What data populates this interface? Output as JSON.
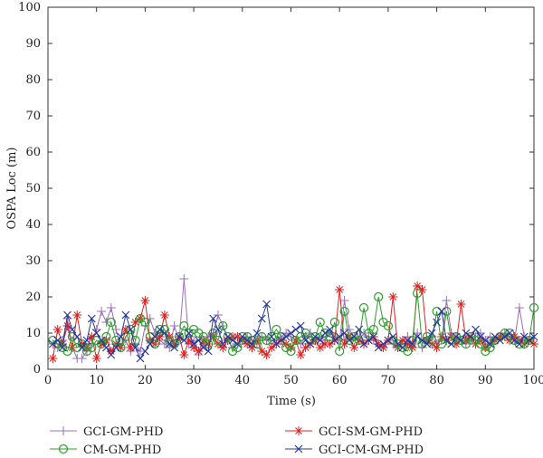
{
  "chart_data": {
    "type": "line",
    "title": "",
    "xlabel": "Time (s)",
    "ylabel": "OSPA Loc (m)",
    "xlim": [
      0,
      100
    ],
    "ylim": [
      0,
      100
    ],
    "xticks": [
      "0",
      "10",
      "20",
      "30",
      "40",
      "50",
      "60",
      "70",
      "80",
      "90",
      "100"
    ],
    "yticks": [
      "0",
      "10",
      "20",
      "30",
      "40",
      "50",
      "60",
      "70",
      "80",
      "90",
      "100"
    ],
    "grid": false,
    "legend_position": "bottom",
    "series": [
      {
        "name": "GCI-GM-PHD",
        "color": "#9b6fc0",
        "marker": "plus",
        "values": [
          7,
          6,
          8,
          14,
          6,
          3,
          3,
          5,
          7,
          11,
          16,
          13,
          17,
          11,
          6,
          8,
          5,
          7,
          5,
          12,
          14,
          10,
          8,
          7,
          6,
          12,
          8,
          25,
          7,
          8,
          4,
          7,
          9,
          10,
          15,
          12,
          8,
          6,
          7,
          8,
          9,
          8,
          7,
          9,
          8,
          7,
          8,
          9,
          10,
          9,
          8,
          7,
          9,
          10,
          8,
          9,
          8,
          10,
          9,
          8,
          19,
          11,
          9,
          8,
          10,
          9,
          8,
          7,
          6,
          8,
          7,
          6,
          8,
          9,
          7,
          10,
          6,
          8,
          9,
          7,
          8,
          19,
          10,
          9,
          8,
          7,
          8,
          9,
          10,
          8,
          9,
          8,
          9,
          10,
          9,
          8,
          17,
          9,
          8,
          7
        ]
      },
      {
        "name": "GCI-SM-GM-PHD",
        "color": "#e02020",
        "marker": "asterisk",
        "values": [
          3,
          11,
          7,
          12,
          6,
          15,
          7,
          6,
          9,
          3,
          7,
          8,
          5,
          7,
          6,
          11,
          6,
          13,
          14,
          19,
          8,
          7,
          9,
          15,
          9,
          7,
          9,
          4,
          8,
          6,
          5,
          8,
          7,
          9,
          7,
          6,
          8,
          9,
          9,
          8,
          7,
          6,
          8,
          5,
          4,
          6,
          7,
          8,
          7,
          6,
          8,
          4,
          6,
          7,
          8,
          6,
          7,
          7,
          8,
          22,
          7,
          9,
          6,
          8,
          7,
          8,
          9,
          7,
          6,
          8,
          20,
          6,
          8,
          7,
          6,
          23,
          22,
          8,
          7,
          6,
          9,
          8,
          9,
          7,
          18,
          8,
          9,
          7,
          8,
          6,
          7,
          8,
          9,
          9,
          8,
          9,
          8,
          7,
          8,
          7
        ]
      },
      {
        "name": "CM-GM-PHD",
        "color": "#2ea02e",
        "marker": "circle",
        "values": [
          8,
          7,
          6,
          5,
          9,
          6,
          7,
          5,
          6,
          8,
          7,
          9,
          13,
          8,
          6,
          9,
          11,
          8,
          14,
          13,
          9,
          7,
          11,
          11,
          8,
          7,
          9,
          12,
          10,
          11,
          10,
          9,
          7,
          10,
          8,
          12,
          9,
          5,
          6,
          9,
          9,
          8,
          7,
          9,
          8,
          9,
          11,
          9,
          6,
          5,
          8,
          9,
          10,
          8,
          9,
          13,
          10,
          9,
          13,
          5,
          16,
          8,
          9,
          8,
          17,
          10,
          11,
          20,
          13,
          12,
          8,
          7,
          6,
          5,
          8,
          21,
          7,
          9,
          8,
          16,
          7,
          16,
          8,
          9,
          8,
          7,
          9,
          8,
          7,
          5,
          6,
          8,
          9,
          10,
          10,
          8,
          7,
          7,
          8,
          17
        ]
      },
      {
        "name": "GCI-CM-GM-PHD",
        "color": "#2a3a9a",
        "marker": "x",
        "values": [
          7,
          8,
          6,
          15,
          11,
          9,
          6,
          8,
          14,
          10,
          8,
          6,
          4,
          6,
          9,
          15,
          11,
          6,
          3,
          5,
          7,
          9,
          11,
          10,
          7,
          6,
          9,
          8,
          10,
          7,
          8,
          6,
          5,
          14,
          11,
          7,
          9,
          8,
          7,
          9,
          8,
          7,
          10,
          14,
          18,
          9,
          7,
          8,
          9,
          10,
          11,
          12,
          8,
          7,
          9,
          8,
          10,
          11,
          8,
          9,
          10,
          8,
          9,
          11,
          7,
          8,
          9,
          6,
          7,
          8,
          9,
          7,
          6,
          8,
          7,
          9,
          8,
          7,
          10,
          13,
          16,
          8,
          7,
          9,
          8,
          10,
          9,
          11,
          9,
          8,
          7,
          9,
          8,
          9,
          10,
          8,
          7,
          9,
          8,
          9
        ]
      }
    ]
  }
}
